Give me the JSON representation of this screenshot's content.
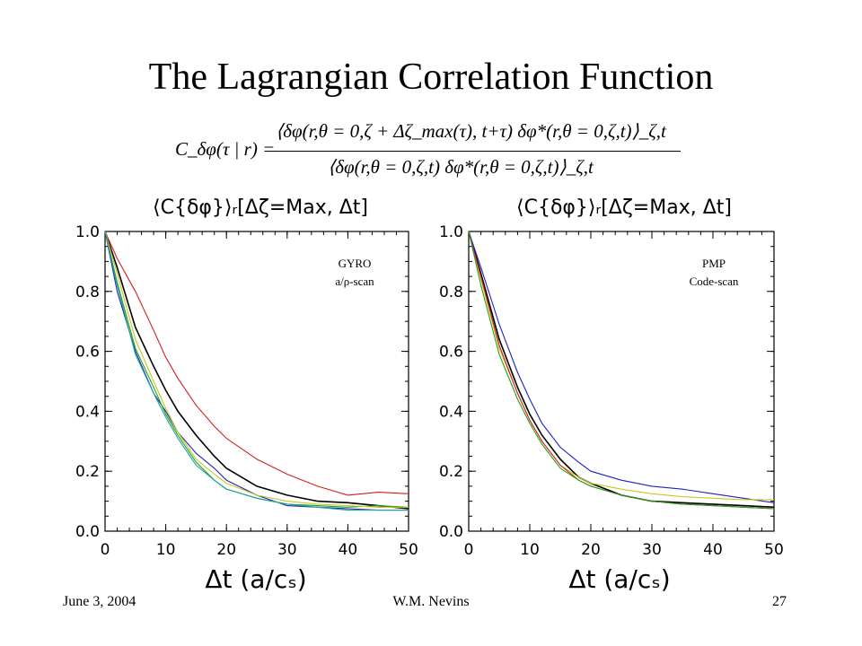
{
  "slide": {
    "title": "The Lagrangian Correlation Function",
    "formula": {
      "lhs": "C_δφ(τ | r) =",
      "numerator": "⟨δφ(r,θ = 0,ζ + Δζ_max(τ), t+τ) δφ*(r,θ = 0,ζ,t)⟩_ζ,t",
      "denominator": "⟨δφ(r,θ = 0,ζ,t) δφ*(r,θ = 0,ζ,t)⟩_ζ,t"
    },
    "footer": {
      "date": "June 3, 2004",
      "author": "W.M. Nevins",
      "page": "27"
    }
  },
  "chart_data": [
    {
      "type": "line",
      "title": "⟨C{δφ}⟩ᵣ[Δζ=Max, Δt]",
      "xlabel": "Δt (a/cₛ)",
      "ylabel": "",
      "xlim": [
        0,
        50
      ],
      "ylim": [
        0,
        1.0
      ],
      "xticks": [
        "0",
        "10",
        "20",
        "30",
        "40",
        "50"
      ],
      "yticks": [
        "0.0",
        "0.2",
        "0.4",
        "0.6",
        "0.8",
        "1.0"
      ],
      "annotation": [
        "GYRO",
        "a/ρ-scan"
      ],
      "series": [
        {
          "color": "#000000",
          "x": [
            0,
            2,
            5,
            8,
            10,
            12,
            15,
            18,
            20,
            25,
            30,
            35,
            40,
            45,
            50
          ],
          "y": [
            1.0,
            0.88,
            0.68,
            0.55,
            0.47,
            0.4,
            0.32,
            0.25,
            0.21,
            0.15,
            0.12,
            0.1,
            0.095,
            0.085,
            0.075
          ]
        },
        {
          "color": "#d02020",
          "x": [
            0,
            2,
            5,
            8,
            10,
            12,
            15,
            18,
            20,
            25,
            30,
            35,
            40,
            45,
            50
          ],
          "y": [
            1.0,
            0.91,
            0.8,
            0.67,
            0.58,
            0.51,
            0.42,
            0.35,
            0.31,
            0.24,
            0.19,
            0.15,
            0.12,
            0.13,
            0.125
          ]
        },
        {
          "color": "#2020c0",
          "x": [
            0,
            2,
            5,
            8,
            10,
            12,
            15,
            18,
            20,
            25,
            30,
            35,
            40,
            45,
            50
          ],
          "y": [
            1.0,
            0.8,
            0.6,
            0.46,
            0.4,
            0.33,
            0.26,
            0.21,
            0.17,
            0.12,
            0.085,
            0.08,
            0.075,
            0.07,
            0.07
          ]
        },
        {
          "color": "#20a020",
          "x": [
            0,
            2,
            5,
            8,
            10,
            12,
            15,
            18,
            20,
            25,
            30,
            35,
            40,
            45,
            50
          ],
          "y": [
            1.0,
            0.83,
            0.61,
            0.48,
            0.39,
            0.32,
            0.23,
            0.17,
            0.14,
            0.11,
            0.09,
            0.085,
            0.08,
            0.085,
            0.08
          ]
        },
        {
          "color": "#c8c820",
          "x": [
            0,
            2,
            5,
            8,
            10,
            12,
            15,
            18,
            20,
            25,
            30,
            35,
            40,
            45,
            50
          ],
          "y": [
            1.0,
            0.86,
            0.64,
            0.5,
            0.41,
            0.33,
            0.24,
            0.19,
            0.16,
            0.12,
            0.1,
            0.09,
            0.085,
            0.08,
            0.08
          ]
        },
        {
          "color": "#20a0a0",
          "x": [
            0,
            2,
            5,
            8,
            10,
            12,
            15,
            18,
            20,
            25,
            30,
            35,
            40,
            45,
            50
          ],
          "y": [
            1.0,
            0.82,
            0.59,
            0.46,
            0.38,
            0.31,
            0.22,
            0.17,
            0.14,
            0.11,
            0.09,
            0.08,
            0.07,
            0.07,
            0.07
          ]
        }
      ]
    },
    {
      "type": "line",
      "title": "⟨C{δφ}⟩ᵣ[Δζ=Max, Δt]",
      "xlabel": "Δt (a/cₛ)",
      "ylabel": "",
      "xlim": [
        0,
        50
      ],
      "ylim": [
        0,
        1.0
      ],
      "xticks": [
        "0",
        "10",
        "20",
        "30",
        "40",
        "50"
      ],
      "yticks": [
        "0.0",
        "0.2",
        "0.4",
        "0.6",
        "0.8",
        "1.0"
      ],
      "annotation": [
        "PMP",
        "Code-scan"
      ],
      "series": [
        {
          "color": "#000000",
          "x": [
            0,
            2,
            5,
            8,
            10,
            12,
            15,
            18,
            20,
            25,
            30,
            35,
            40,
            45,
            50
          ],
          "y": [
            1.0,
            0.86,
            0.64,
            0.48,
            0.39,
            0.32,
            0.24,
            0.18,
            0.16,
            0.12,
            0.1,
            0.095,
            0.09,
            0.085,
            0.08
          ]
        },
        {
          "color": "#2020c0",
          "x": [
            0,
            2,
            5,
            8,
            10,
            12,
            15,
            18,
            20,
            25,
            30,
            35,
            40,
            45,
            50
          ],
          "y": [
            1.0,
            0.88,
            0.69,
            0.53,
            0.44,
            0.36,
            0.28,
            0.23,
            0.2,
            0.17,
            0.15,
            0.14,
            0.125,
            0.11,
            0.095
          ]
        },
        {
          "color": "#c8c820",
          "x": [
            0,
            2,
            5,
            8,
            10,
            12,
            15,
            18,
            20,
            25,
            30,
            35,
            40,
            45,
            50
          ],
          "y": [
            1.0,
            0.84,
            0.61,
            0.46,
            0.37,
            0.3,
            0.22,
            0.18,
            0.16,
            0.14,
            0.125,
            0.115,
            0.11,
            0.105,
            0.105
          ]
        },
        {
          "color": "#d02020",
          "x": [
            0,
            2,
            5,
            8,
            10,
            12,
            15,
            18,
            20,
            25,
            30,
            35,
            40,
            45,
            50
          ],
          "y": [
            1.0,
            0.85,
            0.62,
            0.46,
            0.37,
            0.3,
            0.22,
            0.17,
            0.15,
            0.12,
            0.1,
            0.09,
            0.085,
            0.08,
            0.075
          ]
        },
        {
          "color": "#20a020",
          "x": [
            0,
            2,
            5,
            8,
            10,
            12,
            15,
            18,
            20,
            25,
            30,
            35,
            40,
            45,
            50
          ],
          "y": [
            1.0,
            0.82,
            0.59,
            0.44,
            0.36,
            0.29,
            0.21,
            0.17,
            0.15,
            0.12,
            0.1,
            0.09,
            0.085,
            0.08,
            0.075
          ]
        }
      ]
    }
  ]
}
